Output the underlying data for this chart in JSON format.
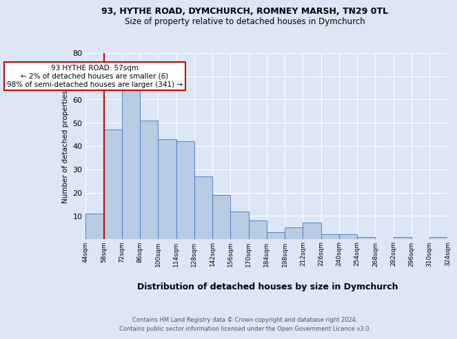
{
  "title1": "93, HYTHE ROAD, DYMCHURCH, ROMNEY MARSH, TN29 0TL",
  "title2": "Size of property relative to detached houses in Dymchurch",
  "xlabel": "Distribution of detached houses by size in Dymchurch",
  "ylabel": "Number of detached properties",
  "categories": [
    "44sqm",
    "58sqm",
    "72sqm",
    "86sqm",
    "100sqm",
    "114sqm",
    "128sqm",
    "142sqm",
    "156sqm",
    "170sqm",
    "184sqm",
    "198sqm",
    "212sqm",
    "226sqm",
    "240sqm",
    "254sqm",
    "268sqm",
    "282sqm",
    "296sqm",
    "310sqm",
    "324sqm"
  ],
  "values": [
    11,
    47,
    65,
    51,
    43,
    42,
    27,
    19,
    12,
    8,
    3,
    5,
    7,
    2,
    2,
    1,
    0,
    1,
    0,
    1
  ],
  "bar_color": "#b8cce4",
  "bar_edge_color": "#4472c4",
  "highlight_color": "#cc0000",
  "annotation_line1": "93 HYTHE ROAD: 57sqm",
  "annotation_line2": "← 2% of detached houses are smaller (6)",
  "annotation_line3": "98% of semi-detached houses are larger (341) →",
  "annotation_box_edge": "#cc0000",
  "ylim": [
    0,
    80
  ],
  "yticks": [
    0,
    10,
    20,
    30,
    40,
    50,
    60,
    70,
    80
  ],
  "bg_color": "#dce6f5",
  "plot_bg_color": "#dce6f5",
  "footer1": "Contains HM Land Registry data © Crown copyright and database right 2024.",
  "footer2": "Contains public sector information licensed under the Open Government Licence v3.0."
}
